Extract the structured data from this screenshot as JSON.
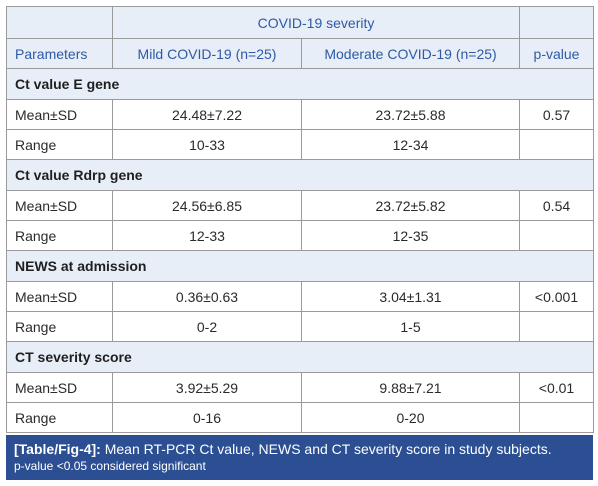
{
  "header": {
    "group_label": "COVID-19 severity",
    "col_parameters": "Parameters",
    "col_mild": "Mild COVID-19 (n=25)",
    "col_moderate": "Moderate COVID-19 (n=25)",
    "col_pvalue": "p-value"
  },
  "sections": [
    {
      "title": "Ct value E gene",
      "rows": [
        {
          "label": "Mean±SD",
          "mild": "24.48±7.22",
          "moderate": "23.72±5.88",
          "p": "0.57"
        },
        {
          "label": "Range",
          "mild": "10-33",
          "moderate": "12-34",
          "p": ""
        }
      ]
    },
    {
      "title": "Ct value Rdrp gene",
      "rows": [
        {
          "label": "Mean±SD",
          "mild": "24.56±6.85",
          "moderate": "23.72±5.82",
          "p": "0.54"
        },
        {
          "label": "Range",
          "mild": "12-33",
          "moderate": "12-35",
          "p": ""
        }
      ]
    },
    {
      "title": "NEWS at admission",
      "rows": [
        {
          "label": "Mean±SD",
          "mild": "0.36±0.63",
          "moderate": "3.04±1.31",
          "p": "<0.001"
        },
        {
          "label": "Range",
          "mild": "0-2",
          "moderate": "1-5",
          "p": ""
        }
      ]
    },
    {
      "title": "CT severity score",
      "rows": [
        {
          "label": "Mean±SD",
          "mild": "3.92±5.29",
          "moderate": "9.88±7.21",
          "p": "<0.01"
        },
        {
          "label": "Range",
          "mild": "0-16",
          "moderate": "0-20",
          "p": ""
        }
      ]
    }
  ],
  "caption": {
    "tag": "[Table/Fig-4]:",
    "text": " Mean RT-PCR Ct value, NEWS and CT severity score in study subjects.",
    "note": "p-value <0.05 considered significant"
  },
  "colors": {
    "header_text": "#2d5aa6",
    "header_bg": "#e8eef7",
    "caption_bg": "#2c4f93",
    "border": "#9a9a9a"
  }
}
